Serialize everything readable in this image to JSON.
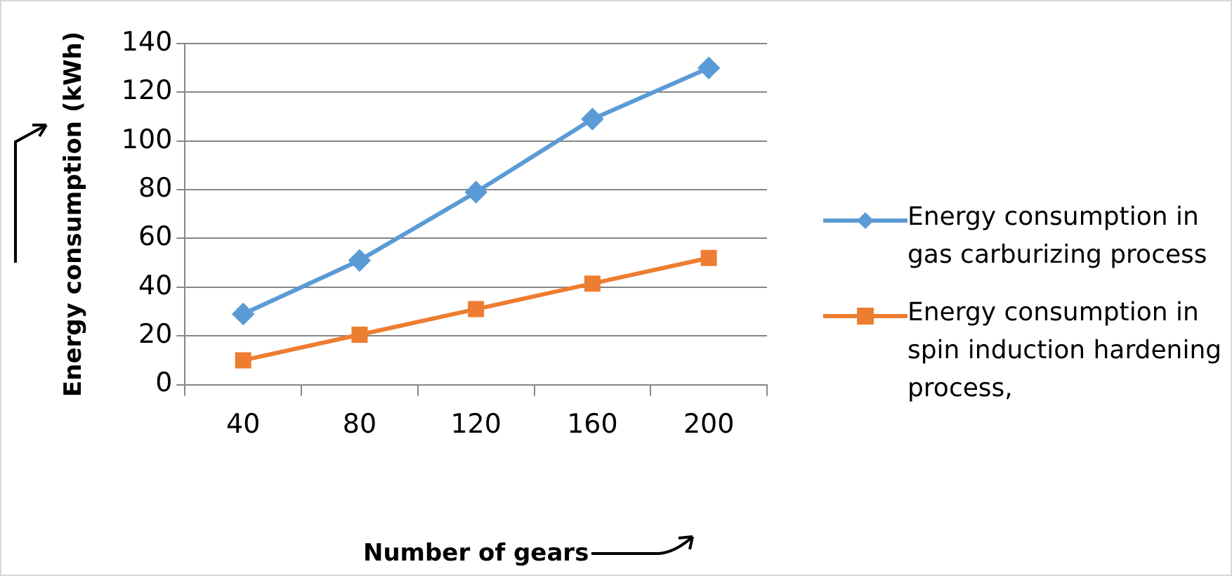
{
  "chart_data": {
    "type": "line",
    "xlabel": "Number of gears",
    "ylabel": "Energy consumption (kWh)",
    "categories": [
      "40",
      "80",
      "120",
      "160",
      "200"
    ],
    "series": [
      {
        "name": "Energy consumption in gas carburizing process",
        "color": "#5b9bd5",
        "marker": "diamond",
        "values": [
          29,
          51,
          79,
          109,
          130
        ]
      },
      {
        "name": "Energy consumption in spin induction hardening process,",
        "color": "#ed7d31",
        "marker": "square",
        "values": [
          10,
          20.5,
          31,
          41.5,
          52
        ]
      }
    ],
    "ylim": [
      0,
      140
    ],
    "yticks": [
      0,
      20,
      40,
      60,
      80,
      100,
      120,
      140
    ],
    "grid": "y",
    "legend": "right"
  }
}
